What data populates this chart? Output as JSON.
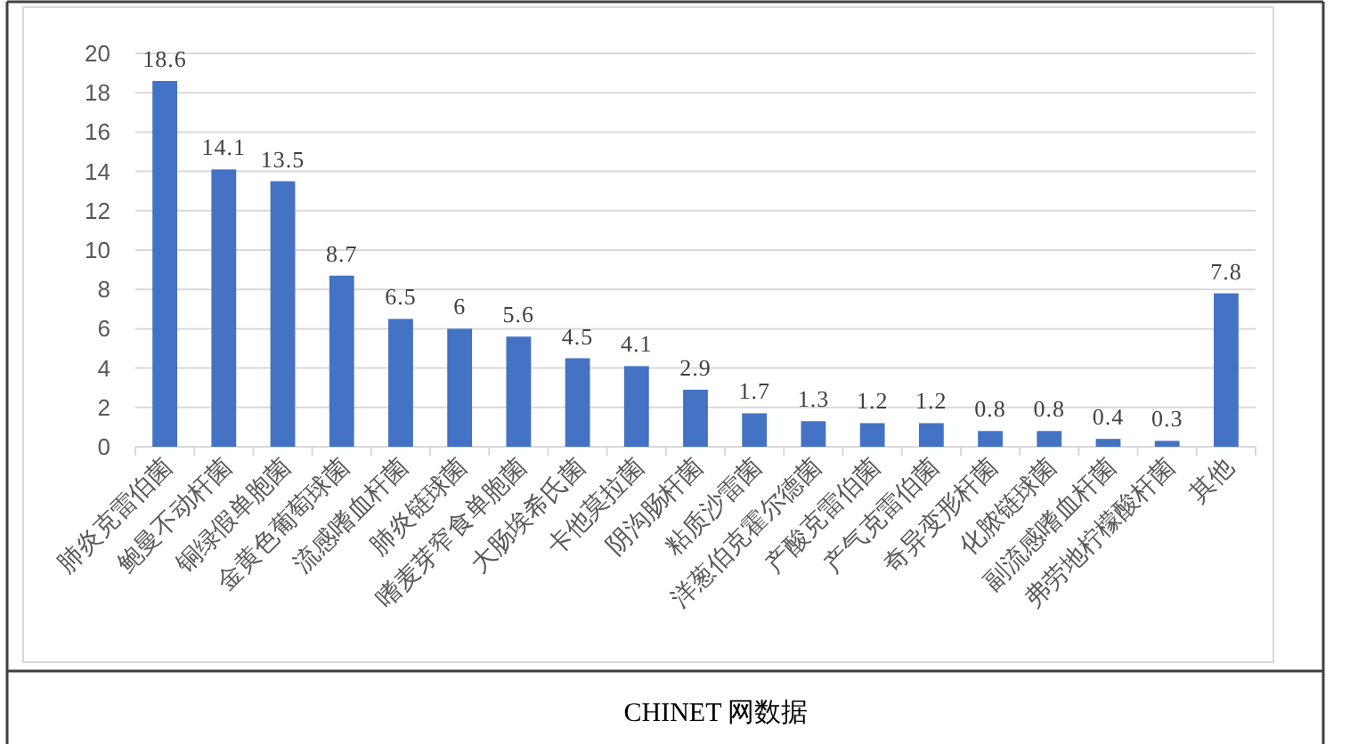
{
  "chart_data": {
    "type": "bar",
    "categories": [
      "肺炎克雷伯菌",
      "鲍曼不动杆菌",
      "铜绿假单胞菌",
      "金黄色葡萄球菌",
      "流感嗜血杆菌",
      "肺炎链球菌",
      "嗜麦芽窄食单胞菌",
      "大肠埃希氏菌",
      "卡他莫拉菌",
      "阴沟肠杆菌",
      "粘质沙雷菌",
      "洋葱伯克霍尔德菌",
      "产酸克雷伯菌",
      "产气克雷伯菌",
      "奇异变形杆菌",
      "化脓链球菌",
      "副流感嗜血杆菌",
      "弗劳地柠檬酸杆菌",
      "其他"
    ],
    "values": [
      18.6,
      14.1,
      13.5,
      8.7,
      6.5,
      6,
      5.6,
      4.5,
      4.1,
      2.9,
      1.7,
      1.3,
      1.2,
      1.2,
      0.8,
      0.8,
      0.4,
      0.3,
      7.8
    ],
    "color": "#4472c4",
    "ylim": [
      0,
      20
    ],
    "yticks": [
      0,
      2,
      4,
      6,
      8,
      10,
      12,
      14,
      16,
      18,
      20
    ],
    "grid": "y",
    "data_labels": true,
    "annotations": [
      "CHINET 网数据"
    ]
  }
}
